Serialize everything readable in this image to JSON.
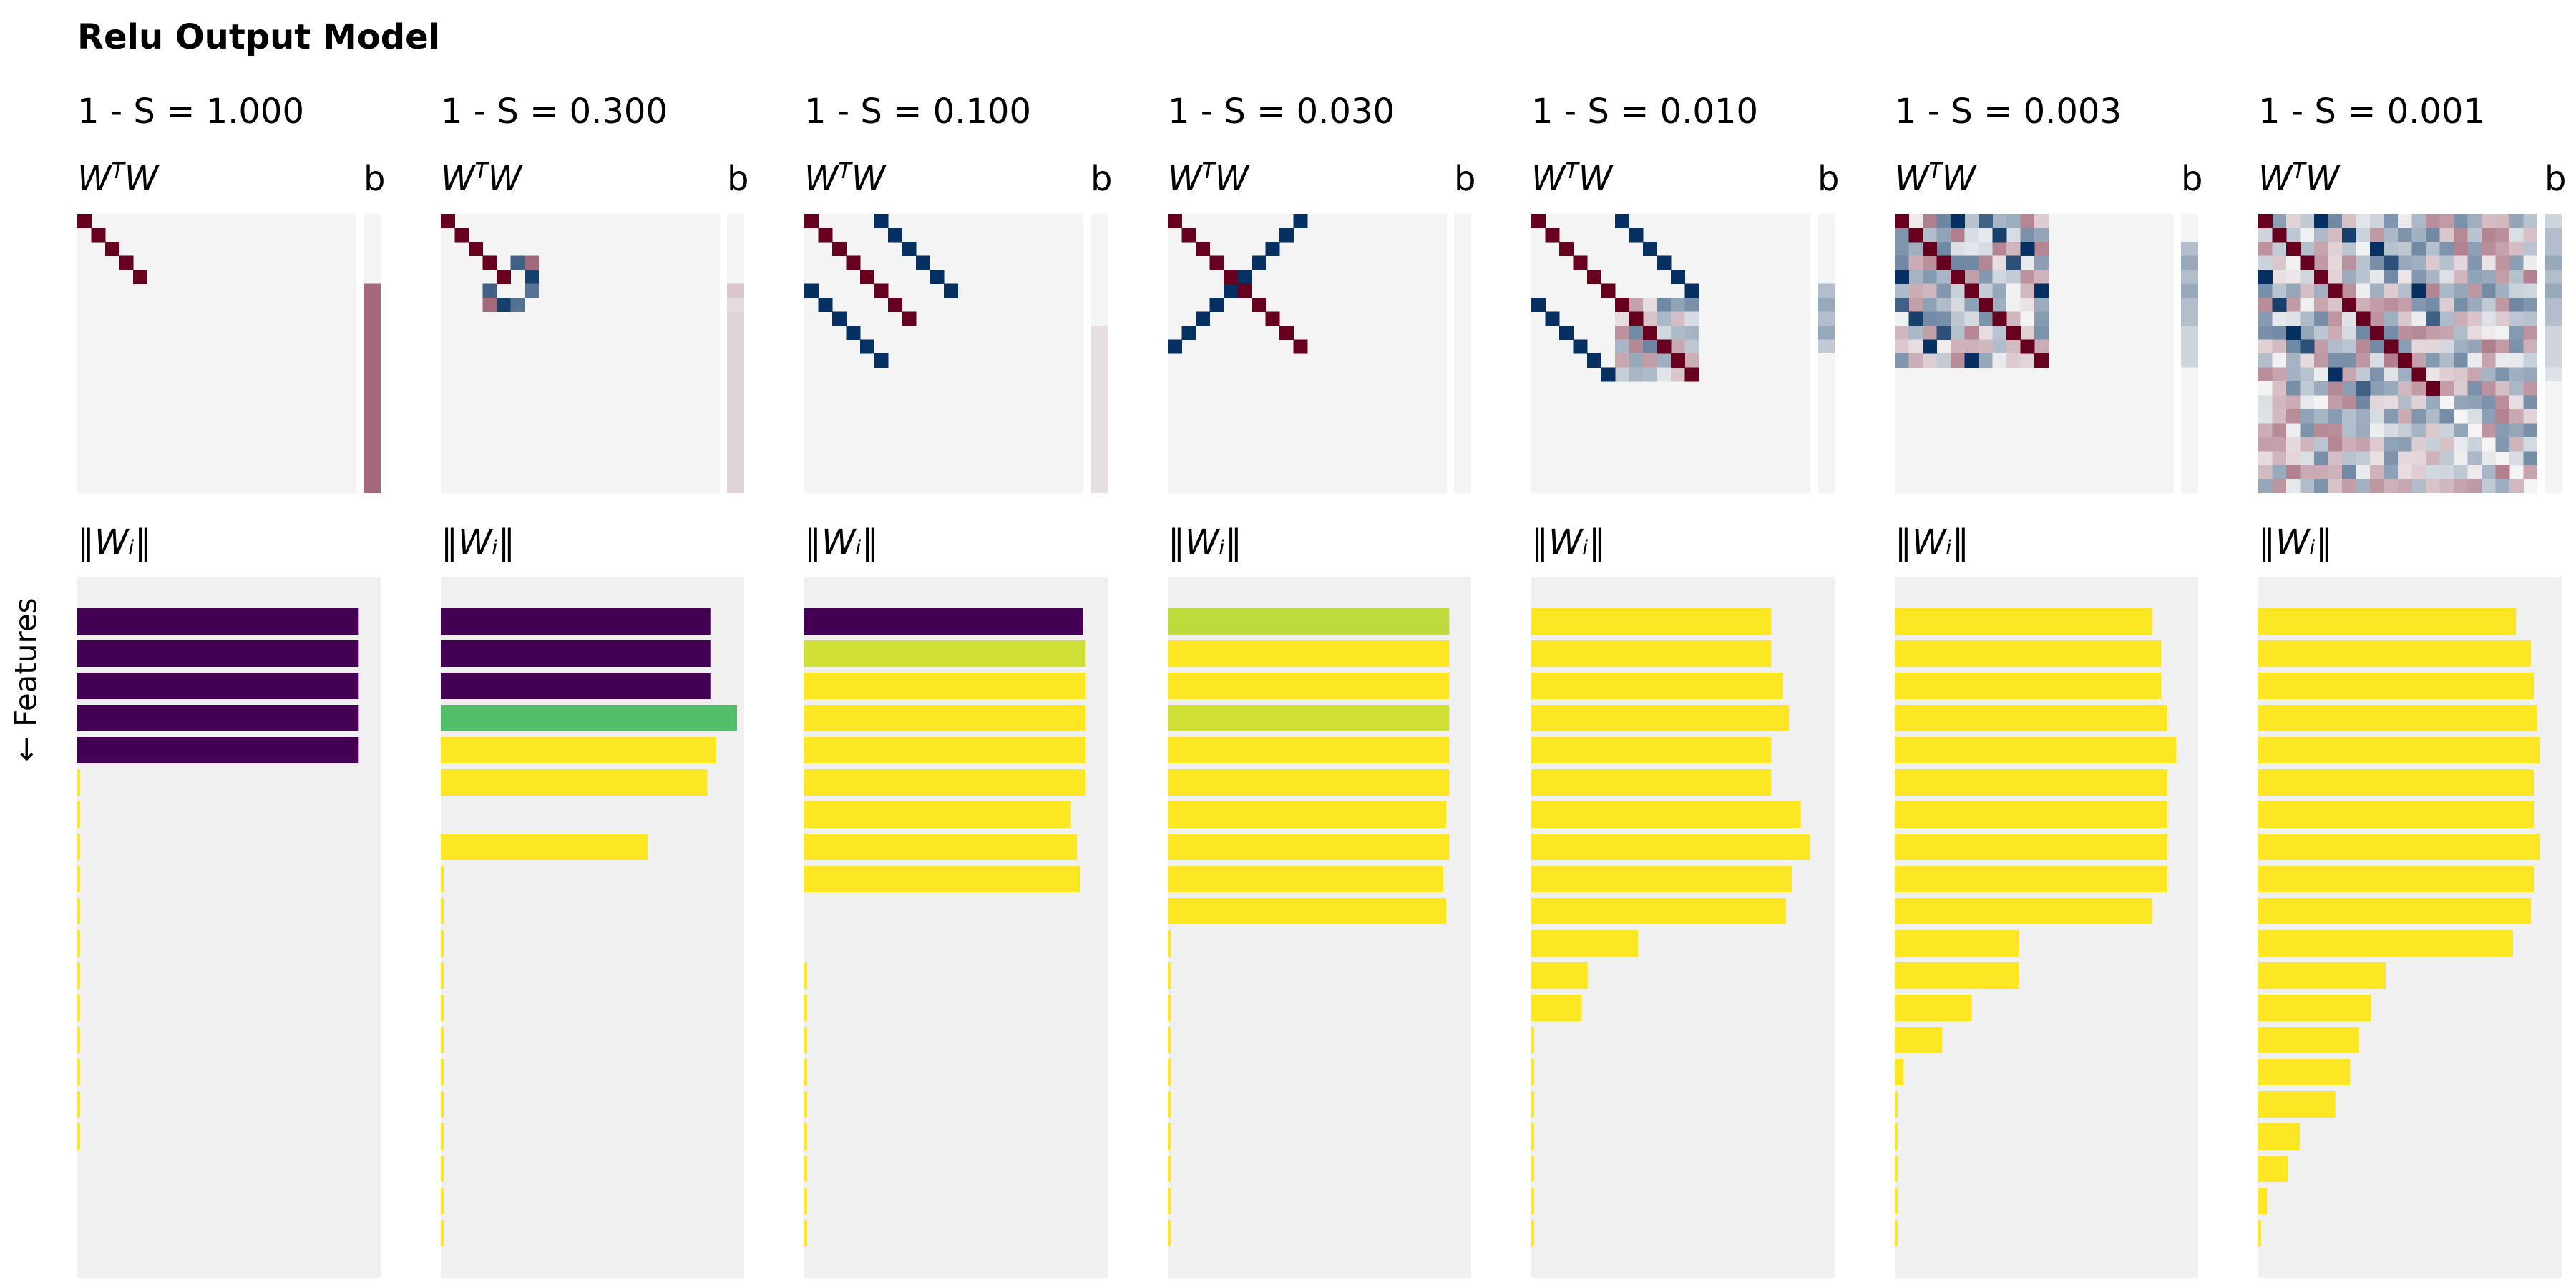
{
  "figure": {
    "title": "Relu Output Model",
    "wtw_label": "W",
    "wtw_sup": "T",
    "wtw_suffix": "W",
    "bias_label": "b",
    "norm_label": "‖Wᵢ‖",
    "features_label": "← Features"
  },
  "colors": {
    "heatmap_neutral": "#f4f4f4",
    "bar_background": "#f0f0f0",
    "cmap": "RdBu_r (red positive, blue negative)",
    "bar_cmap": "viridis (superposition measure)"
  },
  "chart_data": [
    {
      "type": "heatmap+bar",
      "title": "1 - S = 1.000",
      "n_features": 20,
      "diagonal_count": 5,
      "offdiag": [],
      "bias": [
        0,
        0,
        0,
        0,
        0,
        0.5,
        0.5,
        0.5,
        0.5,
        0.5,
        0.5,
        0.5,
        0.5,
        0.5,
        0.5,
        0.5,
        0.5,
        0.5,
        0.5,
        0.5
      ],
      "norms": [
        0.95,
        0.95,
        0.95,
        0.95,
        0.95,
        0.01,
        0.01,
        0.01,
        0.01,
        0.01,
        0.01,
        0.01,
        0.01,
        0.01,
        0.01,
        0.01,
        0.01,
        0,
        0,
        0
      ],
      "superposition": [
        0,
        0,
        0,
        0,
        0,
        1,
        1,
        1,
        1,
        1,
        1,
        1,
        1,
        1,
        1,
        1,
        1,
        1,
        1,
        1
      ]
    },
    {
      "type": "heatmap+bar",
      "title": "1 - S = 0.300",
      "n_features": 20,
      "diagonal_count": 5,
      "offdiag": [
        [
          3,
          5,
          -0.7
        ],
        [
          5,
          3,
          -0.7
        ],
        [
          4,
          6,
          -0.9
        ],
        [
          6,
          4,
          -0.9
        ],
        [
          3,
          6,
          0.5
        ],
        [
          6,
          3,
          0.5
        ],
        [
          5,
          6,
          -0.6
        ],
        [
          6,
          5,
          -0.6
        ]
      ],
      "bias": [
        0,
        0,
        0,
        0,
        0,
        0.12,
        0.06,
        0.08,
        0.08,
        0.08,
        0.08,
        0.08,
        0.08,
        0.08,
        0.08,
        0.08,
        0.08,
        0.08,
        0.08,
        0.08
      ],
      "norms": [
        0.91,
        0.91,
        0.91,
        1.0,
        0.93,
        0.9,
        0,
        0.7,
        0.01,
        0.01,
        0.01,
        0.01,
        0.01,
        0.01,
        0.01,
        0.01,
        0.01,
        0.01,
        0.01,
        0.01
      ],
      "superposition": [
        0,
        0,
        0,
        0.7,
        1,
        1,
        1,
        1,
        1,
        1,
        1,
        1,
        1,
        1,
        1,
        1,
        1,
        1,
        1,
        1
      ]
    },
    {
      "type": "heatmap+bar",
      "title": "1 - S = 0.100",
      "n_features": 20,
      "diagonal_count": 8,
      "offdiag": [
        [
          0,
          5,
          -1
        ],
        [
          5,
          0,
          -1
        ],
        [
          1,
          6,
          -1
        ],
        [
          6,
          1,
          -1
        ],
        [
          2,
          7,
          -1
        ],
        [
          7,
          2,
          -1
        ],
        [
          3,
          8,
          -1
        ],
        [
          8,
          3,
          -1
        ],
        [
          4,
          9,
          -1
        ],
        [
          9,
          4,
          -1
        ],
        [
          5,
          10,
          -1
        ],
        [
          10,
          5,
          -1
        ]
      ],
      "bias": [
        0,
        0,
        0,
        0,
        0,
        0,
        0,
        0,
        0.05,
        0.05,
        0.05,
        0.05,
        0.05,
        0.05,
        0.05,
        0.05,
        0.05,
        0.05,
        0.05,
        0.05
      ],
      "norms": [
        0.94,
        0.95,
        0.95,
        0.95,
        0.95,
        0.95,
        0.9,
        0.92,
        0.93,
        0,
        0,
        0.01,
        0.01,
        0.01,
        0.01,
        0.01,
        0.01,
        0.01,
        0.01,
        0.01
      ],
      "superposition": [
        0,
        0.93,
        1,
        1,
        1,
        1,
        1,
        1,
        1,
        1,
        1,
        1,
        1,
        1,
        1,
        1,
        1,
        1,
        1,
        1
      ]
    },
    {
      "type": "heatmap+bar",
      "title": "1 - S = 0.030",
      "n_features": 20,
      "diagonal_count": 10,
      "offdiag": [
        [
          0,
          9,
          -1
        ],
        [
          9,
          0,
          -1
        ],
        [
          1,
          8,
          -1
        ],
        [
          8,
          1,
          -1
        ],
        [
          2,
          7,
          -1
        ],
        [
          7,
          2,
          -1
        ],
        [
          3,
          6,
          -1
        ],
        [
          6,
          3,
          -1
        ],
        [
          4,
          5,
          -1
        ],
        [
          5,
          4,
          -1
        ]
      ],
      "bias": [
        0,
        0,
        0,
        0,
        0,
        0,
        0,
        0,
        0,
        0,
        0,
        0,
        0,
        0,
        0,
        0,
        0,
        0,
        0,
        0
      ],
      "norms": [
        0.95,
        0.95,
        0.95,
        0.95,
        0.95,
        0.95,
        0.94,
        0.95,
        0.93,
        0.94,
        0.01,
        0.01,
        0.01,
        0.01,
        0.01,
        0.01,
        0.01,
        0.01,
        0.01,
        0.01
      ],
      "superposition": [
        0.9,
        1,
        1,
        0.93,
        1,
        1,
        1,
        1,
        1,
        1,
        1,
        1,
        1,
        1,
        1,
        1,
        1,
        1,
        1,
        1
      ]
    },
    {
      "type": "heatmap+bar",
      "title": "1 - S = 0.010",
      "n_features": 20,
      "diagonal_count": 12,
      "dense_region": [
        6,
        12
      ],
      "offdiag": [
        [
          0,
          6,
          -1
        ],
        [
          6,
          0,
          -1
        ],
        [
          1,
          7,
          -1
        ],
        [
          7,
          1,
          -1
        ],
        [
          2,
          8,
          -1
        ],
        [
          8,
          2,
          -1
        ],
        [
          3,
          9,
          -1
        ],
        [
          9,
          3,
          -1
        ],
        [
          4,
          10,
          -1
        ],
        [
          10,
          4,
          -1
        ],
        [
          5,
          11,
          -1
        ],
        [
          11,
          5,
          -1
        ]
      ],
      "bias": [
        0,
        0,
        0,
        0,
        0,
        -0.2,
        -0.3,
        -0.2,
        -0.3,
        -0.15,
        0,
        0,
        0,
        0,
        0,
        0,
        0,
        0,
        0,
        0
      ],
      "norms": [
        0.81,
        0.81,
        0.85,
        0.87,
        0.81,
        0.81,
        0.91,
        0.94,
        0.88,
        0.86,
        0.36,
        0.19,
        0.17,
        0.01,
        0.01,
        0.01,
        0.01,
        0.01,
        0.01,
        0.01
      ],
      "superposition": [
        1,
        1,
        1,
        1,
        1,
        1,
        1,
        1,
        1,
        1,
        1,
        1,
        1,
        1,
        1,
        1,
        1,
        1,
        1,
        1
      ]
    },
    {
      "type": "heatmap+bar",
      "title": "1 - S = 0.003",
      "n_features": 20,
      "diagonal_count": 11,
      "dense_region": [
        0,
        11
      ],
      "offdiag": [
        [
          0,
          4,
          -1
        ],
        [
          4,
          0,
          -1
        ],
        [
          1,
          7,
          -0.9
        ],
        [
          7,
          1,
          -0.9
        ],
        [
          2,
          9,
          -1
        ],
        [
          9,
          2,
          -1
        ],
        [
          3,
          8,
          -0.8
        ],
        [
          8,
          3,
          -0.8
        ],
        [
          5,
          10,
          -1
        ],
        [
          10,
          5,
          -1
        ],
        [
          6,
          0,
          -0.7
        ],
        [
          0,
          6,
          -0.7
        ]
      ],
      "bias": [
        0,
        0,
        -0.2,
        -0.3,
        -0.2,
        -0.3,
        -0.2,
        -0.2,
        -0.1,
        -0.1,
        -0.1,
        0,
        0,
        0,
        0,
        0,
        0,
        0,
        0,
        0
      ],
      "norms": [
        0.87,
        0.9,
        0.9,
        0.92,
        0.95,
        0.92,
        0.92,
        0.92,
        0.92,
        0.87,
        0.42,
        0.42,
        0.26,
        0.16,
        0.03,
        0.01,
        0.01,
        0.01,
        0.01,
        0.01
      ],
      "superposition": [
        1,
        1,
        1,
        1,
        1,
        1,
        1,
        1,
        1,
        1,
        1,
        1,
        1,
        1,
        1,
        1,
        1,
        1,
        1,
        1
      ]
    },
    {
      "type": "heatmap+bar",
      "title": "1 - S = 0.001",
      "n_features": 20,
      "diagonal_count": 13,
      "dense_region": [
        0,
        20
      ],
      "offdiag": [
        [
          0,
          4,
          -1
        ],
        [
          4,
          0,
          -1
        ],
        [
          1,
          6,
          -0.9
        ],
        [
          6,
          1,
          -0.9
        ],
        [
          2,
          8,
          -1
        ],
        [
          8,
          2,
          -1
        ],
        [
          3,
          9,
          -0.8
        ],
        [
          9,
          3,
          -0.8
        ],
        [
          5,
          11,
          -1
        ],
        [
          11,
          5,
          -1
        ],
        [
          7,
          12,
          -0.7
        ],
        [
          12,
          7,
          -0.7
        ]
      ],
      "bias": [
        -0.1,
        -0.2,
        -0.2,
        -0.3,
        -0.2,
        -0.3,
        -0.2,
        -0.2,
        -0.1,
        -0.1,
        -0.1,
        -0.05,
        0,
        0,
        0,
        0,
        0,
        0,
        0,
        0
      ],
      "norms": [
        0.87,
        0.92,
        0.93,
        0.94,
        0.95,
        0.93,
        0.93,
        0.95,
        0.93,
        0.92,
        0.86,
        0.43,
        0.38,
        0.34,
        0.31,
        0.26,
        0.14,
        0.1,
        0.03,
        0.01
      ],
      "superposition": [
        1,
        1,
        1,
        1,
        1,
        1,
        1,
        1,
        1,
        1,
        1,
        1,
        1,
        1,
        1,
        1,
        1,
        1,
        1,
        1
      ]
    }
  ]
}
